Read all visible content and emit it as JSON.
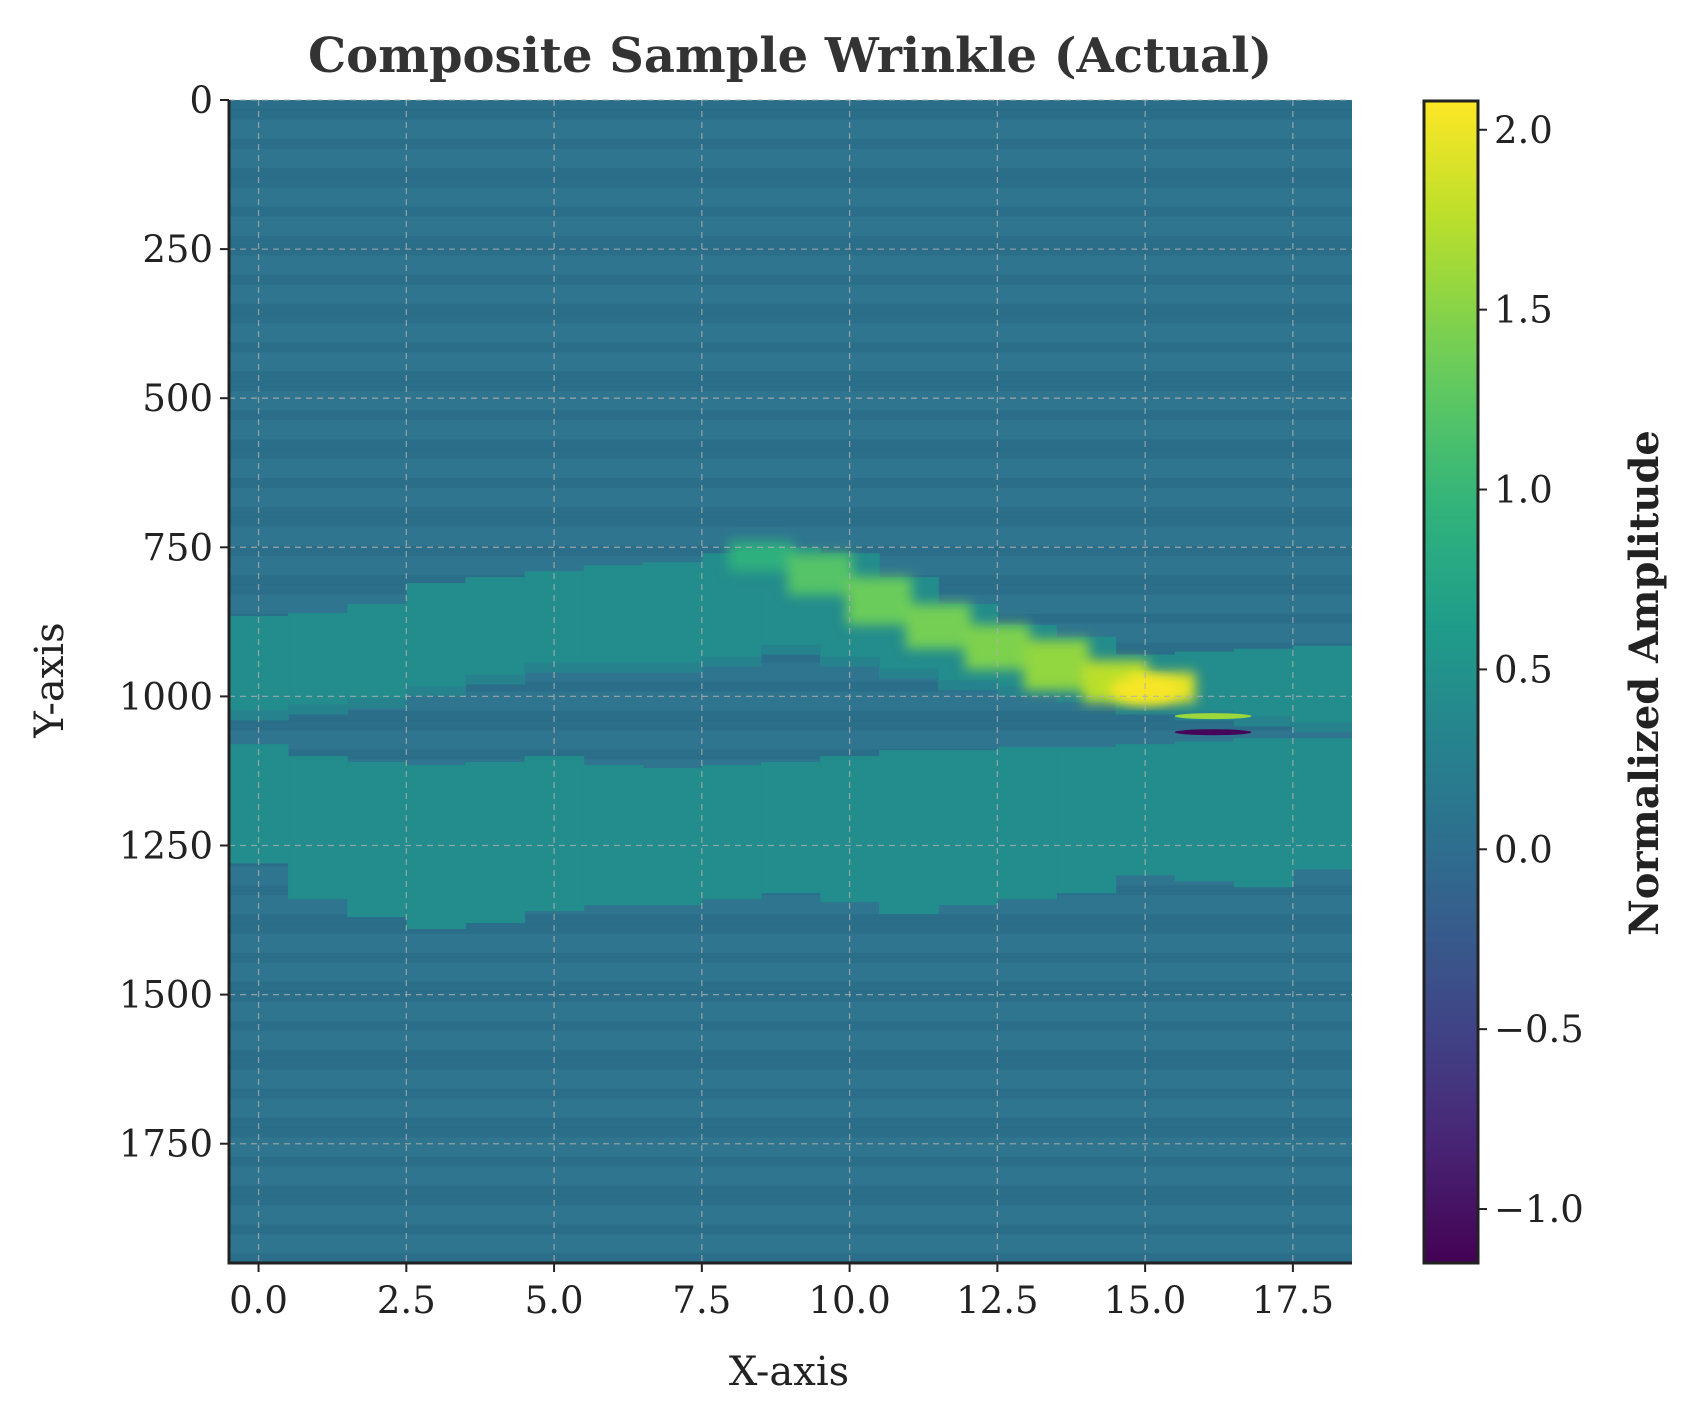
{
  "chart_data": {
    "type": "heatmap",
    "title": "Composite Sample Wrinkle (Actual)",
    "xlabel": "X-axis",
    "ylabel": "Y-axis",
    "xlim": [
      -0.5,
      18.5
    ],
    "ylim": [
      1950,
      0
    ],
    "x_ticks": [
      0.0,
      2.5,
      5.0,
      7.5,
      10.0,
      12.5,
      15.0,
      17.5
    ],
    "x_tick_labels": [
      "0.0",
      "2.5",
      "5.0",
      "7.5",
      "10.0",
      "12.5",
      "15.0",
      "17.5"
    ],
    "y_ticks": [
      0,
      250,
      500,
      750,
      1000,
      1250,
      1500,
      1750
    ],
    "y_tick_labels": [
      "0",
      "250",
      "500",
      "750",
      "1000",
      "1250",
      "1500",
      "1750"
    ],
    "grid": true,
    "colormap": "viridis",
    "colorbar": {
      "label": "Normalized Amplitude",
      "range": [
        -1.15,
        2.08
      ],
      "ticks": [
        -1.0,
        -0.5,
        0.0,
        0.5,
        1.0,
        1.5,
        2.0
      ],
      "tick_labels": [
        "−1.0",
        "−0.5",
        "0.0",
        "0.5",
        "1.0",
        "1.5",
        "2.0"
      ]
    },
    "columns_x": [
      0,
      1,
      2,
      3,
      4,
      5,
      6,
      7,
      8,
      9,
      10,
      11,
      12,
      13,
      14,
      15,
      16,
      17,
      18
    ],
    "background_value": 0.08,
    "regions": [
      {
        "from_x": -0.5,
        "to_x": 18.5,
        "y_top": [
          865,
          860,
          845,
          810,
          800,
          790,
          780,
          775,
          760,
          750,
          760,
          800,
          845,
          880,
          900,
          930,
          925,
          920,
          915
        ],
        "y_bottom": [
          1040,
          1030,
          1020,
          1000,
          980,
          960,
          960,
          960,
          950,
          930,
          950,
          970,
          990,
          1000,
          1010,
          1030,
          1040,
          1050,
          1060
        ],
        "value": 0.42
      },
      {
        "from_x": -0.5,
        "to_x": 18.5,
        "y_top": [
          1080,
          1100,
          1110,
          1115,
          1110,
          1100,
          1115,
          1120,
          1115,
          1110,
          1100,
          1090,
          1090,
          1085,
          1085,
          1080,
          1075,
          1070,
          1070
        ],
        "y_bottom": [
          1280,
          1340,
          1370,
          1390,
          1380,
          1360,
          1350,
          1350,
          1340,
          1330,
          1345,
          1365,
          1350,
          1340,
          1330,
          1300,
          1310,
          1320,
          1290
        ],
        "value": 0.42
      }
    ],
    "wrinkle_band": {
      "x": [
        8.5,
        9.5,
        10.5,
        11.5,
        12.5,
        13.5,
        14.5,
        15.3
      ],
      "y_top": [
        740,
        760,
        800,
        845,
        880,
        905,
        940,
        960
      ],
      "y_bottom": [
        790,
        830,
        880,
        920,
        955,
        990,
        1010,
        1010
      ],
      "value": [
        0.9,
        1.2,
        1.35,
        1.4,
        1.45,
        1.55,
        1.75,
        1.95
      ]
    },
    "hotspot": {
      "x": 15.0,
      "y": 990,
      "value": 2.05
    },
    "thin_features": [
      {
        "x_from": 15.5,
        "x_to": 16.8,
        "y": 1033,
        "value": 1.6
      },
      {
        "x_from": 15.5,
        "x_to": 16.8,
        "y": 1060,
        "value": -1.1
      }
    ]
  }
}
